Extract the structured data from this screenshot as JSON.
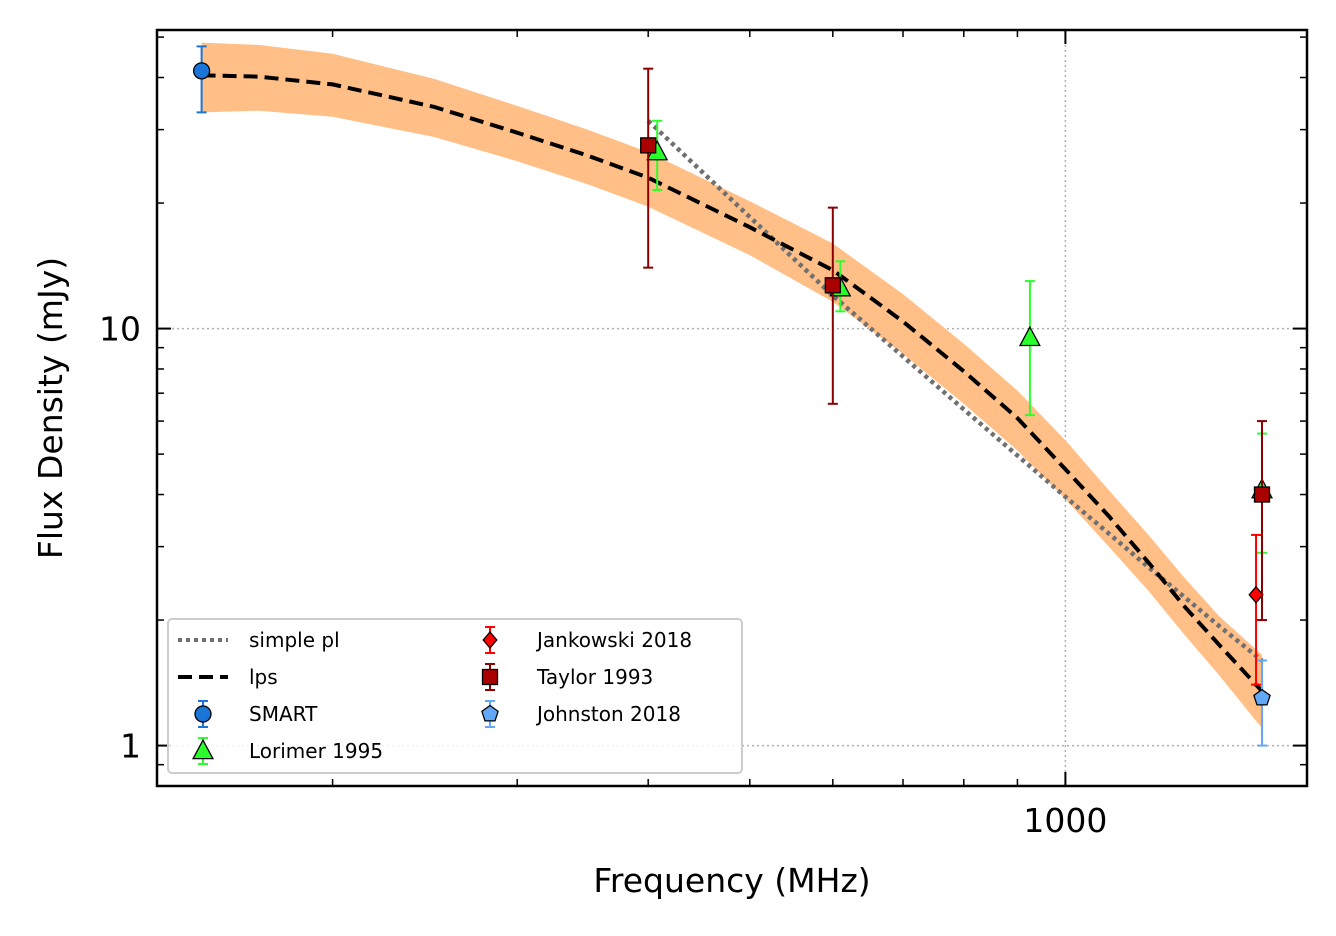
{
  "chart_data": {
    "type": "scatter",
    "xlabel": "Frequency (MHz)",
    "ylabel": "Flux Density (mJy)",
    "x_scale": "log",
    "y_scale": "log",
    "xlim": [
      136,
      1700
    ],
    "ylim": [
      0.8,
      52
    ],
    "x_ticks": [
      {
        "value": 1000,
        "label": "1000"
      }
    ],
    "y_ticks": [
      {
        "value": 1,
        "label": "1"
      },
      {
        "value": 10,
        "label": "10"
      }
    ],
    "grid": true,
    "legend": {
      "position": "lower-left",
      "columns": 2
    },
    "series": [
      {
        "name": "simple pl",
        "kind": "line",
        "style": "dotted",
        "color": "#707070",
        "x": [
          400,
          600,
          800,
          1000,
          1200,
          1400,
          1540
        ],
        "y": [
          31.5,
          12.0,
          6.4,
          3.95,
          2.68,
          1.94,
          1.6
        ]
      },
      {
        "name": "lps",
        "kind": "line",
        "style": "dashed",
        "color": "#000000",
        "x": [
          150,
          170,
          200,
          250,
          300,
          350,
          400,
          500,
          600,
          700,
          800,
          900,
          1000,
          1100,
          1200,
          1300,
          1400,
          1540
        ],
        "y": [
          40.5,
          40.2,
          38.5,
          34.0,
          29.5,
          26.0,
          23.0,
          17.5,
          13.8,
          10.4,
          7.9,
          6.1,
          4.6,
          3.55,
          2.75,
          2.15,
          1.75,
          1.35
        ],
        "band_color": "#ffbf86",
        "band_lower": [
          33.0,
          33.3,
          32.2,
          28.8,
          25.2,
          22.2,
          19.6,
          15.0,
          11.6,
          8.7,
          6.6,
          5.1,
          3.9,
          3.0,
          2.35,
          1.84,
          1.48,
          1.1
        ],
        "band_upper": [
          48.5,
          47.9,
          45.6,
          39.7,
          34.2,
          30.0,
          26.5,
          20.2,
          16.0,
          12.1,
          9.2,
          7.1,
          5.4,
          4.1,
          3.2,
          2.52,
          2.05,
          1.65
        ]
      },
      {
        "name": "SMART",
        "kind": "points",
        "marker": "circle",
        "color": "#1b74d8",
        "ecolor": "#1b74d8",
        "x": [
          150
        ],
        "y": [
          41.5
        ],
        "yerr_low": [
          33.0
        ],
        "yerr_high": [
          47.5
        ]
      },
      {
        "name": "Lorimer 1995",
        "kind": "points",
        "marker": "triangle",
        "color": "#2bff2b",
        "ecolor": "#2bff2b",
        "x": [
          408,
          610,
          925,
          1540
        ],
        "y": [
          26.5,
          12.5,
          9.5,
          4.1
        ],
        "yerr_low": [
          21.5,
          11.0,
          6.2,
          2.9
        ],
        "yerr_high": [
          31.5,
          14.5,
          13.0,
          5.6
        ]
      },
      {
        "name": "Jankowski 2018",
        "kind": "points",
        "marker": "diamond",
        "color": "#ff0000",
        "ecolor": "#ff0000",
        "x": [
          1520
        ],
        "y": [
          2.3
        ],
        "yerr_low": [
          1.4
        ],
        "yerr_high": [
          3.2
        ]
      },
      {
        "name": "Taylor 1993",
        "kind": "points",
        "marker": "square",
        "color": "#aa0000",
        "ecolor": "#8b0000",
        "x": [
          400,
          600,
          1540
        ],
        "y": [
          27.5,
          12.7,
          4.0
        ],
        "yerr_low": [
          14.0,
          6.6,
          2.0
        ],
        "yerr_high": [
          42.0,
          19.5,
          6.0
        ]
      },
      {
        "name": "Johnston 2018",
        "kind": "points",
        "marker": "pentagon",
        "color": "#62a8f7",
        "ecolor": "#62a8f7",
        "x": [
          1540
        ],
        "y": [
          1.3
        ],
        "yerr_low": [
          1.0
        ],
        "yerr_high": [
          1.6
        ]
      }
    ]
  }
}
